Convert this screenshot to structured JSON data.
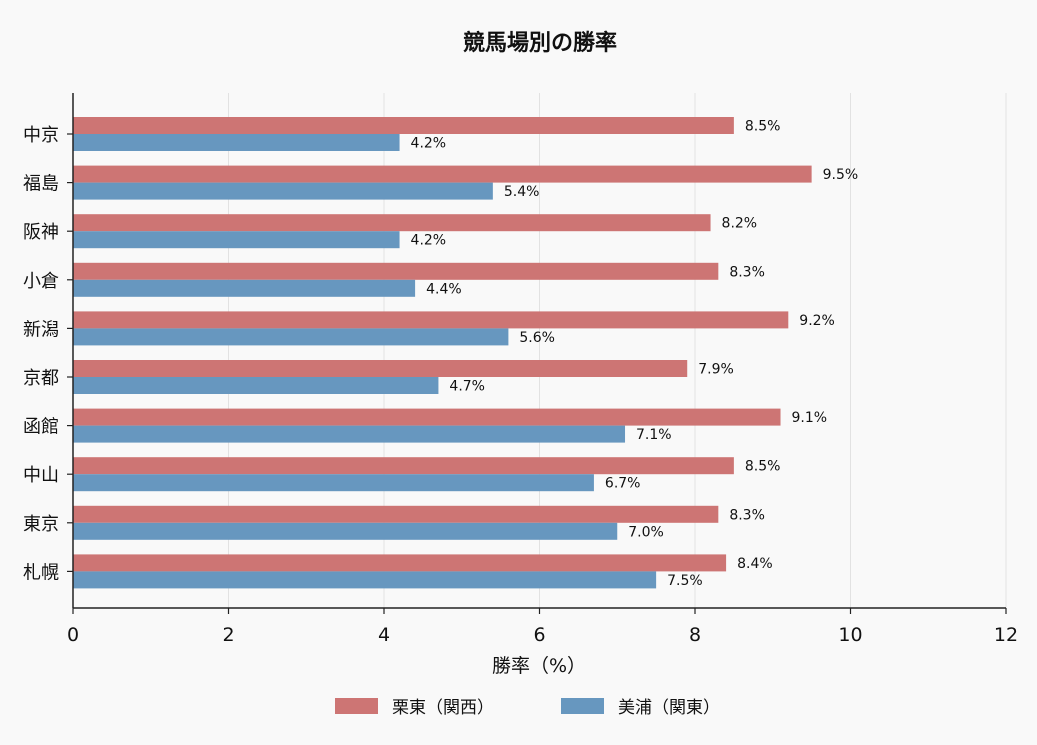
{
  "chart_data": {
    "type": "bar",
    "orientation": "horizontal",
    "title": "競馬場別の勝率",
    "xlabel": "勝率（%）",
    "ylabel": "",
    "xlim": [
      0,
      12
    ],
    "xticks": [
      0,
      2,
      4,
      6,
      8,
      10,
      12
    ],
    "grid": "vertical",
    "legend_position": "bottom-center",
    "categories": [
      "中京",
      "福島",
      "阪神",
      "小倉",
      "新潟",
      "京都",
      "函館",
      "中山",
      "東京",
      "札幌"
    ],
    "series": [
      {
        "name": "栗東（関西）",
        "color": "#cd7574",
        "values": [
          8.5,
          9.5,
          8.2,
          8.3,
          9.2,
          7.9,
          9.1,
          8.5,
          8.3,
          8.4
        ]
      },
      {
        "name": "美浦（関東）",
        "color": "#6797bf",
        "values": [
          4.2,
          5.4,
          4.2,
          4.4,
          5.6,
          4.7,
          7.1,
          6.7,
          7.0,
          7.5
        ]
      }
    ],
    "value_label_suffix": "%"
  }
}
